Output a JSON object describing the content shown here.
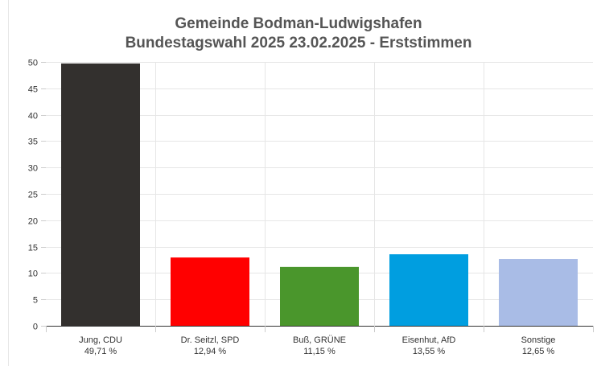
{
  "chart_data": {
    "type": "bar",
    "title": "Gemeinde Bodman-Ludwigshafen",
    "subtitle": "Bundestagswahl 2025 23.02.2025  - Erststimmen",
    "categories": [
      "Jung, CDU",
      "Dr. Seitzl, SPD",
      "Buß, GRÜNE",
      "Eisenhut, AfD",
      "Sonstige"
    ],
    "value_labels": [
      "49,71 %",
      "12,94 %",
      "11,15 %",
      "13,55 %",
      "12,65 %"
    ],
    "values": [
      49.71,
      12.94,
      11.15,
      13.55,
      12.65
    ],
    "colors": [
      "#33302e",
      "#ff0000",
      "#4a962c",
      "#009ee0",
      "#a9bce6"
    ],
    "ylim": [
      0,
      50
    ],
    "yticks": [
      0,
      5,
      10,
      15,
      20,
      25,
      30,
      35,
      40,
      45,
      50
    ],
    "grid": true
  }
}
